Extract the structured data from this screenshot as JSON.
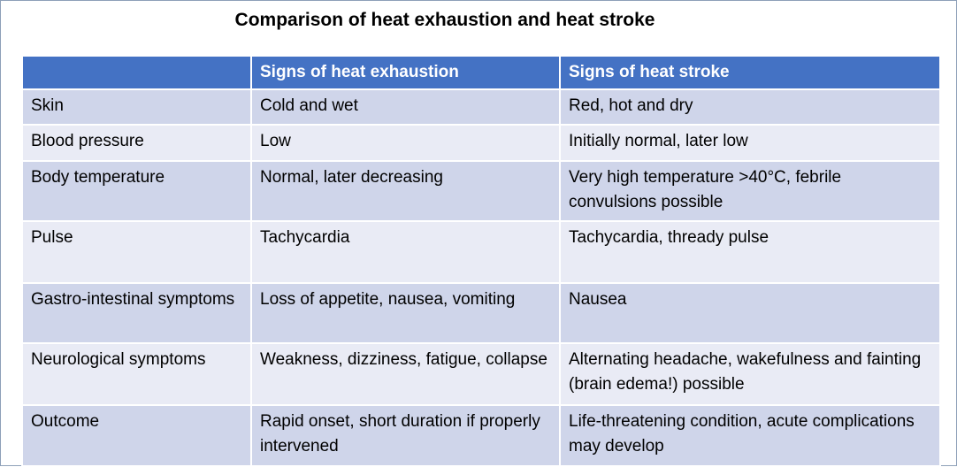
{
  "title": "Comparison of heat exhaustion and heat stroke",
  "table": {
    "header": [
      "Signs of heat exhaustion",
      "Signs of heat stroke"
    ],
    "rows": [
      [
        "Skin",
        "Cold and wet",
        "Red, hot and dry"
      ],
      [
        "Blood pressure",
        "Low",
        "Initially normal, later low"
      ],
      [
        "Body temperature",
        "Normal, later decreasing",
        "Very high temperature >40°C, febrile convulsions possible"
      ],
      [
        "Pulse",
        "Tachycardia",
        "Tachycardia, thready pulse"
      ],
      [
        "Gastro-intestinal symptoms",
        "Loss of appetite, nausea, vomiting",
        "Nausea"
      ],
      [
        "Neurological symptoms",
        "Weakness, dizziness, fatigue, collapse",
        "Alternating headache, wakefulness and fainting (brain edema!) possible"
      ],
      [
        "Outcome",
        "Rapid onset, short duration if properly intervened",
        "Life-threatening condition, acute complications may develop"
      ]
    ]
  }
}
